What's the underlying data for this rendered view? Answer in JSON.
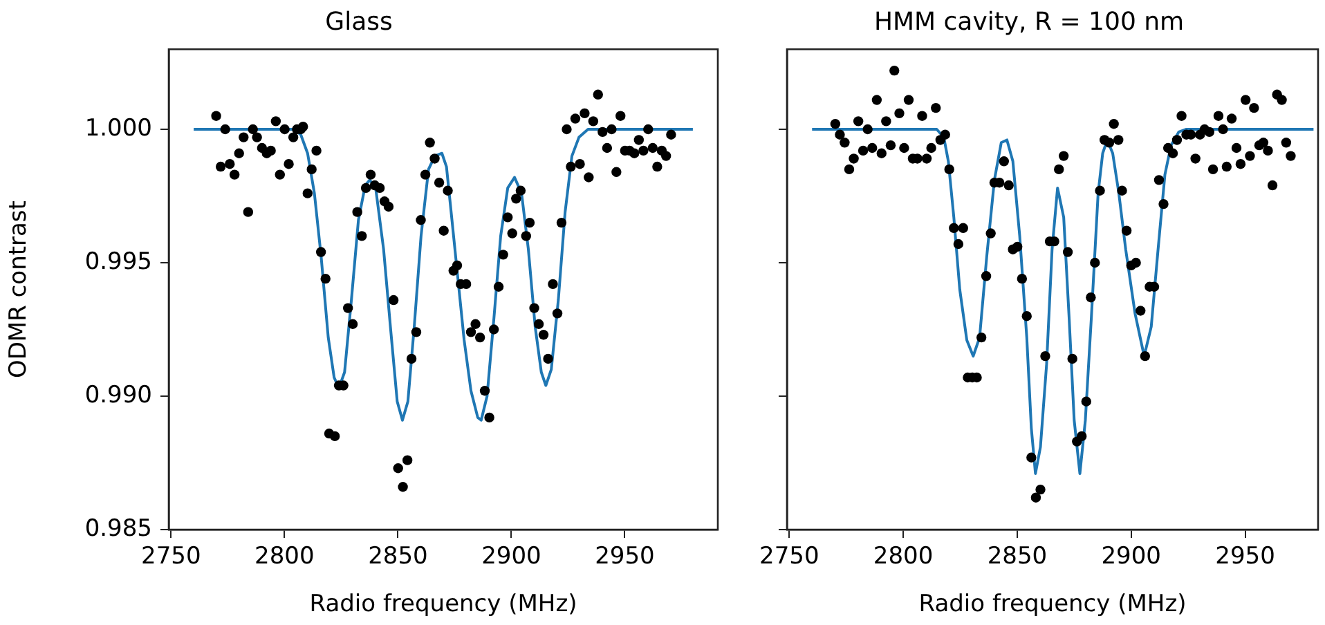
{
  "chart_data": [
    {
      "type": "scatter",
      "title": "Glass",
      "xlabel": "Radio frequency (MHz)",
      "ylabel": "ODMR contrast",
      "xlim": [
        2749,
        2991
      ],
      "ylim": [
        0.985,
        1.003
      ],
      "xticks": [
        2750,
        2800,
        2850,
        2900,
        2950
      ],
      "yticks": [
        0.985,
        {
          "value": 0.99,
          "label": "0.990"
        },
        0.995,
        {
          "value": 1,
          "label": "1.000"
        }
      ],
      "grid": false,
      "legend": false,
      "series": [
        {
          "type": "scatter",
          "marker": "circle",
          "color": "#000000",
          "x": [
            2769.9,
            2771.9,
            2773.9,
            2775.9,
            2778.0,
            2780.0,
            2782.0,
            2784.0,
            2786.1,
            2787.9,
            2790.1,
            2792.2,
            2794.0,
            2796.2,
            2798.0,
            2800.1,
            2801.9,
            2803.9,
            2805.5,
            2807.2,
            2808.2,
            2810.2,
            2812.0,
            2814.1,
            2816.1,
            2818.1,
            2819.7,
            2822.2,
            2824.0,
            2826.0,
            2828.0,
            2830.1,
            2832.1,
            2834.1,
            2835.9,
            2838.0,
            2839.8,
            2842.0,
            2844.1,
            2845.9,
            2848.1,
            2850.1,
            2852.2,
            2854.2,
            2856.0,
            2858.1,
            2860.1,
            2862.1,
            2864.1,
            2866.2,
            2868.2,
            2870.2,
            2872.0,
            2874.5,
            2876.1,
            2877.7,
            2880.1,
            2882.2,
            2884.2,
            2886.2,
            2888.3,
            2890.3,
            2892.3,
            2894.4,
            2896.4,
            2898.4,
            2900.4,
            2902.1,
            2904.1,
            2906.5,
            2908.1,
            2910.1,
            2912.1,
            2914.2,
            2916.2,
            2918.3,
            2920.3,
            2922.1,
            2924.4,
            2926.2,
            2928.2,
            2930.2,
            2932.3,
            2934.1,
            2936.1,
            2938.2,
            2940.2,
            2942.2,
            2944.2,
            2946.3,
            2948.1,
            2950.1,
            2952.1,
            2954.2,
            2956.2,
            2958.2,
            2960.3,
            2962.3,
            2964.3,
            2966.3,
            2968.2,
            2970.4
          ],
          "values": [
            1.0005,
            0.9986,
            1.0,
            0.9987,
            0.9983,
            0.9991,
            0.9997,
            0.9969,
            1.0,
            0.9997,
            0.9993,
            0.9991,
            0.9992,
            1.0003,
            0.9983,
            1.0,
            0.9987,
            0.9997,
            1.0,
            1.0,
            1.0001,
            0.9976,
            0.9985,
            0.9992,
            0.9954,
            0.9944,
            0.9886,
            0.9885,
            0.9904,
            0.9904,
            0.9933,
            0.9927,
            0.9969,
            0.996,
            0.9978,
            0.9983,
            0.9979,
            0.9978,
            0.9973,
            0.9971,
            0.9936,
            0.9873,
            0.9866,
            0.9876,
            0.9914,
            0.9924,
            0.9966,
            0.9983,
            0.9995,
            0.9989,
            0.998,
            0.9962,
            0.9977,
            0.9947,
            0.9949,
            0.9942,
            0.9942,
            0.9924,
            0.9927,
            0.9922,
            0.9902,
            0.9892,
            0.9925,
            0.9941,
            0.9953,
            0.9967,
            0.9961,
            0.9974,
            0.9977,
            0.996,
            0.9965,
            0.9933,
            0.9927,
            0.9923,
            0.9914,
            0.9942,
            0.9931,
            0.9965,
            1.0,
            0.9986,
            1.0004,
            0.9987,
            1.0006,
            0.9982,
            1.0003,
            1.0013,
            0.9999,
            0.9993,
            1.0,
            0.9984,
            1.0005,
            0.9992,
            0.9992,
            0.9991,
            0.9996,
            0.9992,
            1.0,
            0.9993,
            0.9986,
            0.9992,
            0.999,
            0.9998
          ]
        },
        {
          "type": "line",
          "marker": "none",
          "line_style": "solid",
          "color": "#1f77b4",
          "x": [
            2760,
            2804.1,
            2807.2,
            2810.2,
            2813.2,
            2816.2,
            2819.3,
            2821.9,
            2824.0,
            2826.5,
            2829.5,
            2832.6,
            2835.6,
            2837.6,
            2840.2,
            2843.7,
            2846.7,
            2849.7,
            2852.0,
            2854.4,
            2857.2,
            2860.2,
            2863.5,
            2866.3,
            2869.4,
            2871.4,
            2873.1,
            2876.1,
            2879.2,
            2882.2,
            2885.2,
            2886.7,
            2889.3,
            2892.3,
            2895.3,
            2898.4,
            2901.4,
            2904.5,
            2907.5,
            2910.5,
            2913.2,
            2915.2,
            2917.6,
            2920.7,
            2923.7,
            2926.7,
            2929.8,
            2933.8,
            2980
          ],
          "values": [
            1.0,
            1.0,
            0.9998,
            0.9991,
            0.9976,
            0.9952,
            0.9922,
            0.9907,
            0.9903,
            0.9909,
            0.9936,
            0.9966,
            0.9979,
            0.9981,
            0.9978,
            0.9955,
            0.9926,
            0.9898,
            0.9891,
            0.9898,
            0.9926,
            0.996,
            0.9985,
            0.999,
            0.9991,
            0.9986,
            0.9972,
            0.9947,
            0.9921,
            0.9902,
            0.9892,
            0.9891,
            0.99,
            0.9929,
            0.996,
            0.9978,
            0.9982,
            0.9976,
            0.9955,
            0.9926,
            0.9909,
            0.9904,
            0.991,
            0.9936,
            0.9969,
            0.999,
            0.9997,
            1.0,
            1.0
          ]
        }
      ]
    },
    {
      "type": "scatter",
      "title": "HMM cavity, R = 100 nm",
      "xlabel": "Radio frequency (MHz)",
      "xlim": [
        2749,
        2982
      ],
      "ylim": [
        0.985,
        1.003
      ],
      "xticks": [
        2750,
        2800,
        2850,
        2900,
        2950
      ],
      "yticks": [
        {
          "value": 0.985,
          "label": null
        },
        {
          "value": 0.99,
          "label": null
        },
        {
          "value": 0.995,
          "label": null
        },
        {
          "value": 1,
          "label": null
        }
      ],
      "tick_labels": "x",
      "grid": false,
      "legend": false,
      "series": [
        {
          "type": "scatter",
          "marker": "circle",
          "color": "#000000",
          "x": [
            2770.2,
            2772.2,
            2774.3,
            2776.3,
            2778.3,
            2780.3,
            2782.4,
            2784.4,
            2786.4,
            2788.4,
            2790.5,
            2792.5,
            2794.5,
            2796.1,
            2798.3,
            2800.4,
            2802.4,
            2804.2,
            2806.2,
            2808.3,
            2810.3,
            2812.3,
            2814.3,
            2816.3,
            2818.4,
            2820.2,
            2822.2,
            2824.2,
            2826.3,
            2828.3,
            2830.3,
            2832.3,
            2834.3,
            2836.4,
            2838.4,
            2840.0,
            2842.2,
            2844.2,
            2846.3,
            2848.1,
            2850.1,
            2852.1,
            2854.2,
            2856.2,
            2858.2,
            2860.2,
            2862.3,
            2864.3,
            2866.3,
            2868.3,
            2870.4,
            2872.2,
            2874.2,
            2876.2,
            2878.3,
            2880.3,
            2882.3,
            2884.1,
            2886.3,
            2888.3,
            2890.4,
            2892.4,
            2894.4,
            2896.0,
            2898.0,
            2900.0,
            2902.1,
            2904.1,
            2906.1,
            2908.1,
            2910.1,
            2912.2,
            2914.2,
            2916.2,
            2918.3,
            2920.1,
            2922.1,
            2924.2,
            2926.2,
            2928.2,
            2930.2,
            2932.2,
            2934.3,
            2935.9,
            2938.3,
            2940.3,
            2941.9,
            2944.1,
            2946.2,
            2948.0,
            2950.2,
            2952.1,
            2953.9,
            2956.2,
            2958.0,
            2960.0,
            2962.0,
            2964.0,
            2966.1,
            2968.0,
            2970.0
          ],
          "values": [
            1.0002,
            0.9998,
            0.9995,
            0.9985,
            0.9989,
            1.0003,
            0.9992,
            1.0,
            0.9993,
            1.0011,
            0.9991,
            1.0003,
            0.9994,
            1.0022,
            1.0006,
            0.9993,
            1.0011,
            0.9989,
            0.9989,
            1.0005,
            0.9989,
            0.9993,
            1.0008,
            0.9996,
            0.9998,
            0.9985,
            0.9963,
            0.9957,
            0.9963,
            0.9907,
            0.9907,
            0.9907,
            0.9922,
            0.9945,
            0.9961,
            0.998,
            0.998,
            0.9988,
            0.9979,
            0.9955,
            0.9956,
            0.9944,
            0.993,
            0.9877,
            0.9862,
            0.9865,
            0.9915,
            0.9958,
            0.9958,
            0.9985,
            0.999,
            0.9954,
            0.9914,
            0.9883,
            0.9885,
            0.9898,
            0.9937,
            0.995,
            0.9977,
            0.9996,
            0.9995,
            1.0002,
            0.9996,
            0.9977,
            0.9962,
            0.9949,
            0.995,
            0.9932,
            0.9915,
            0.9941,
            0.9941,
            0.9981,
            0.9972,
            0.9993,
            0.9991,
            0.9996,
            1.0005,
            0.9998,
            0.9998,
            0.9989,
            0.9998,
            1.0,
            0.9999,
            0.9985,
            1.0005,
            1.0,
            0.9986,
            1.0004,
            0.9993,
            0.9987,
            1.0011,
            0.999,
            1.0008,
            0.9994,
            0.9995,
            0.9992,
            0.9979,
            1.0013,
            1.0011,
            0.9995,
            0.999
          ]
        },
        {
          "type": "line",
          "marker": "none",
          "line_style": "solid",
          "color": "#1f77b4",
          "x": [
            2760,
            2814.7,
            2817.8,
            2819.8,
            2822.2,
            2824.8,
            2827.9,
            2830.7,
            2833.5,
            2836.6,
            2840.0,
            2843.0,
            2845.5,
            2848.1,
            2851.1,
            2854.2,
            2856.2,
            2858.0,
            2860.2,
            2862.9,
            2865.3,
            2867.7,
            2870.4,
            2872.8,
            2875.0,
            2877.5,
            2879.9,
            2882.5,
            2885.5,
            2887.5,
            2889.5,
            2891.9,
            2894.6,
            2897.6,
            2901.7,
            2905.7,
            2908.8,
            2911.8,
            2914.8,
            2917.5,
            2920.9,
            2924.0,
            2980
          ],
          "values": [
            1.0,
            1.0,
            0.9997,
            0.9988,
            0.9967,
            0.994,
            0.9921,
            0.9915,
            0.9922,
            0.9952,
            0.9981,
            0.9995,
            0.9996,
            0.9988,
            0.996,
            0.9922,
            0.9888,
            0.9871,
            0.9881,
            0.9912,
            0.9955,
            0.9978,
            0.9967,
            0.9929,
            0.9891,
            0.9871,
            0.9891,
            0.9929,
            0.9976,
            0.9991,
            0.9996,
            0.9991,
            0.9976,
            0.9955,
            0.9931,
            0.9915,
            0.9926,
            0.9955,
            0.9983,
            0.9994,
            0.9999,
            1.0,
            1.0
          ]
        }
      ]
    }
  ]
}
